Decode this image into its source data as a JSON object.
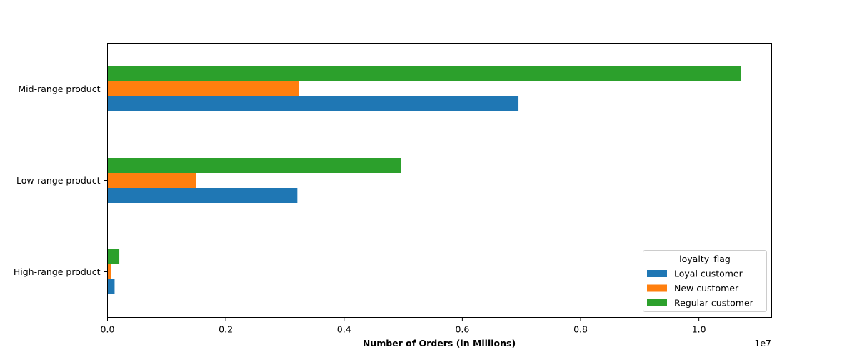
{
  "chart_data": {
    "type": "bar",
    "orientation": "horizontal",
    "categories": [
      "High-range product",
      "Low-range product",
      "Mid-range product"
    ],
    "series": [
      {
        "name": "Loyal customer",
        "color": "#1f77b4",
        "values": [
          120000,
          3210000,
          6950000
        ]
      },
      {
        "name": "New customer",
        "color": "#ff7f0e",
        "values": [
          60000,
          1500000,
          3240000
        ]
      },
      {
        "name": "Regular customer",
        "color": "#2ca02c",
        "values": [
          200000,
          4960000,
          10710000
        ]
      }
    ],
    "title": "",
    "xlabel": "Number of Orders (in Millions)",
    "ylabel": "",
    "xlim": [
      0,
      11230000
    ],
    "x_ticks": [
      0,
      2000000,
      4000000,
      6000000,
      8000000,
      10000000
    ],
    "x_tick_labels": [
      "0.0",
      "0.2",
      "0.4",
      "0.6",
      "0.8",
      "1.0"
    ],
    "x_offset_label": "1e7",
    "grid": false,
    "legend": {
      "title": "loyalty_flag",
      "placement": "lower-right"
    }
  }
}
